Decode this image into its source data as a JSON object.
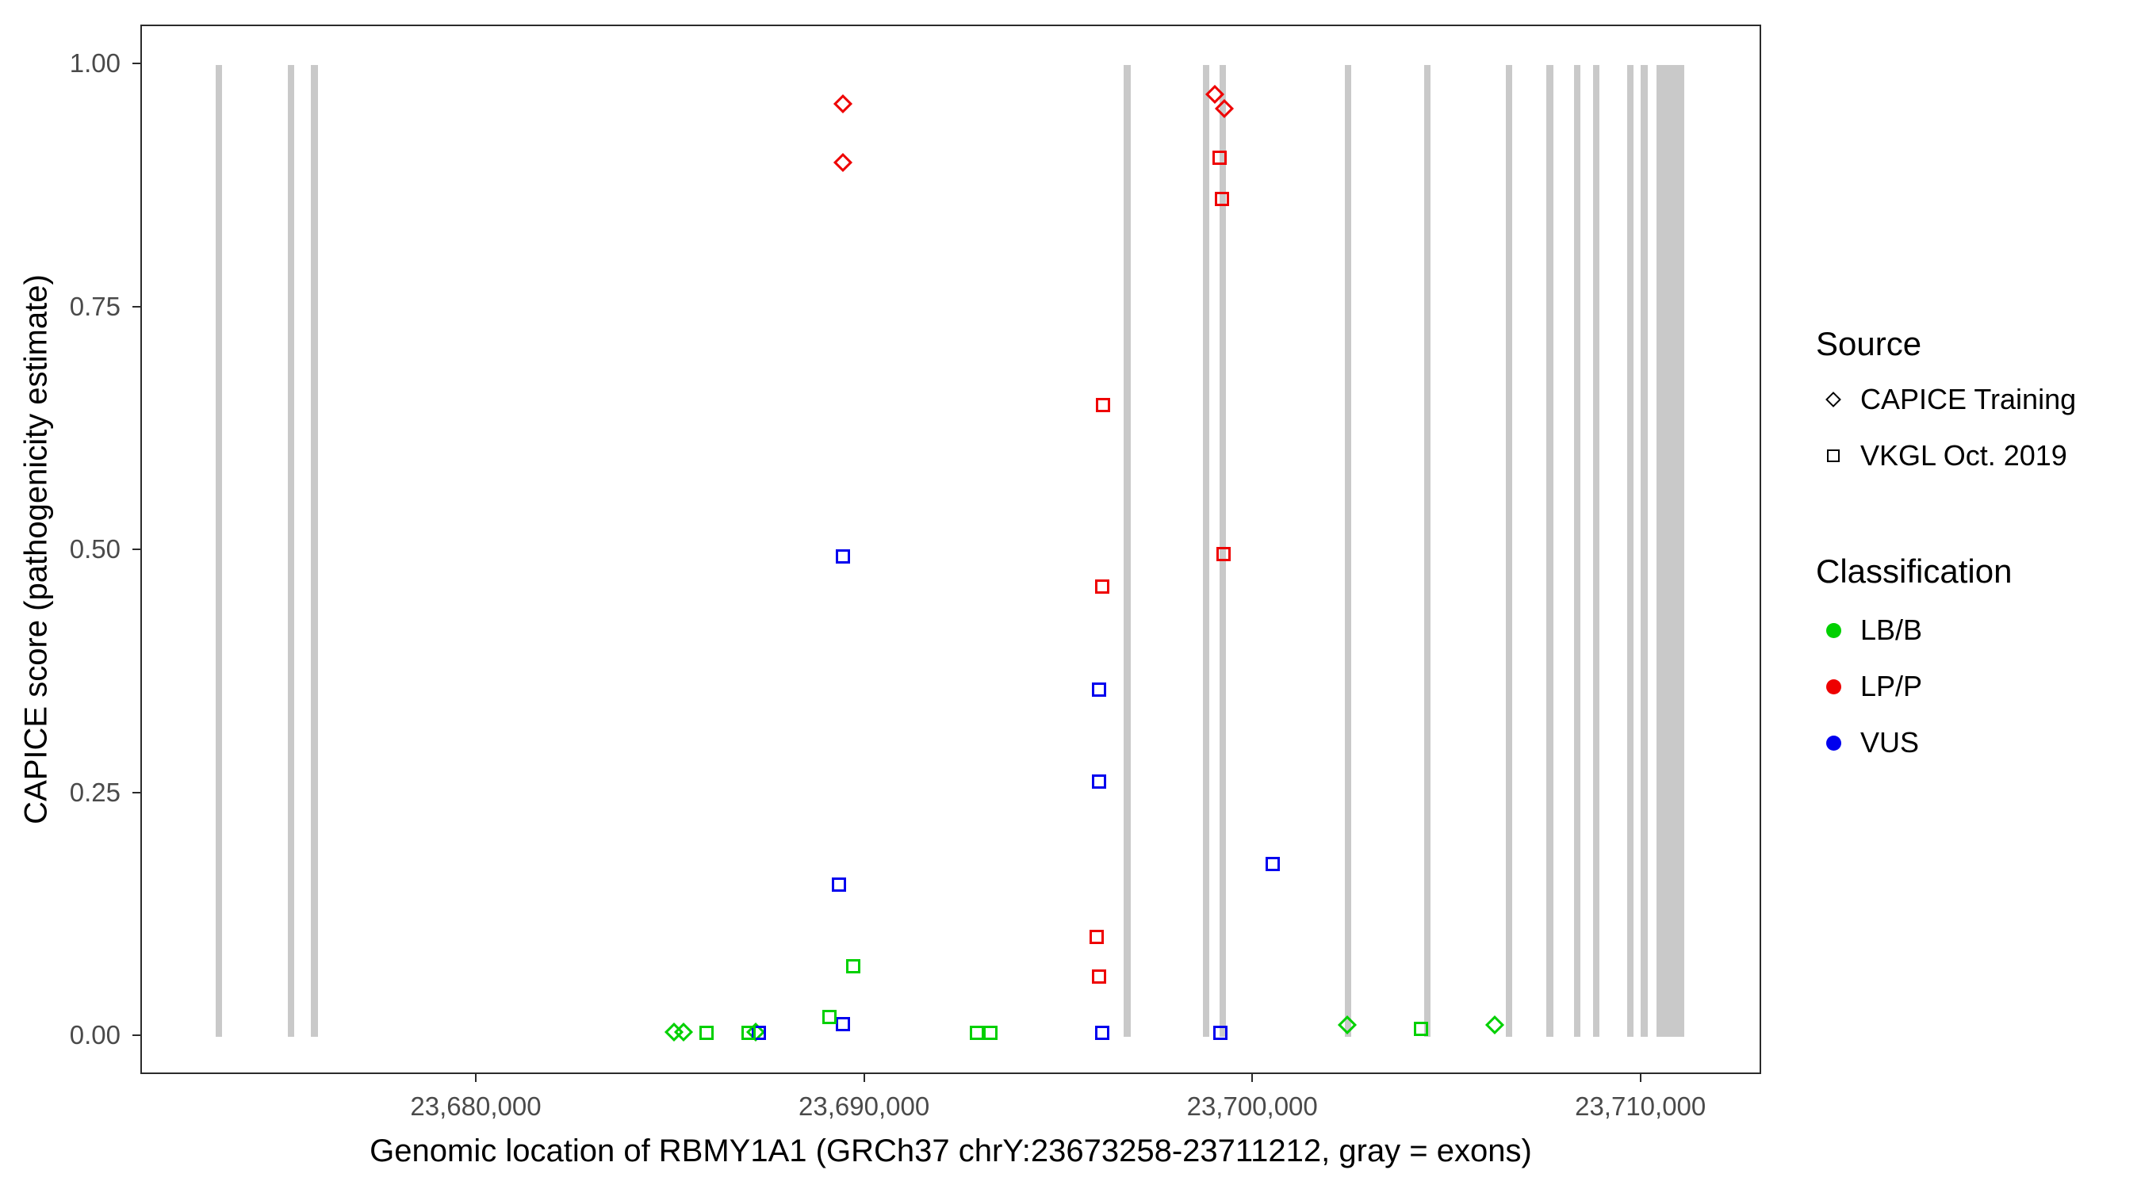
{
  "chart_data": {
    "type": "scatter",
    "title": "",
    "xlabel": "Genomic location of RBMY1A1 (GRCh37 chrY:23673258-23711212, gray = exons)",
    "ylabel": "CAPICE score (pathogenicity estimate)",
    "xlim": [
      23671360,
      23713110
    ],
    "ylim": [
      -0.04,
      1.04
    ],
    "xticks": [
      23680000,
      23690000,
      23700000,
      23710000
    ],
    "xtick_labels": [
      "23,680,000",
      "23,690,000",
      "23,700,000",
      "23,710,000"
    ],
    "yticks": [
      1.0,
      0.75,
      0.5,
      0.25,
      0.0
    ],
    "ytick_labels": [
      "1.00",
      "0.75",
      "0.50",
      "0.25",
      "0.00"
    ],
    "grid": false,
    "legend_position": "right",
    "exon_color": "#C9C9C9",
    "exon_span_scores": [
      0.0,
      1.0
    ],
    "exons": [
      [
        23673258,
        23673430
      ],
      [
        23675120,
        23675290
      ],
      [
        23675715,
        23675890
      ],
      [
        23696650,
        23696825
      ],
      [
        23698690,
        23698860
      ],
      [
        23699110,
        23699285
      ],
      [
        23702340,
        23702515
      ],
      [
        23704380,
        23704550
      ],
      [
        23706485,
        23706660
      ],
      [
        23707540,
        23707715
      ],
      [
        23708240,
        23708415
      ],
      [
        23708730,
        23708910
      ],
      [
        23709610,
        23709785
      ],
      [
        23709960,
        23710140
      ],
      [
        23710380,
        23711090
      ]
    ],
    "points": [
      {
        "x": 23689413,
        "y": 0.96,
        "shape": "diamond",
        "cls": "LP/P"
      },
      {
        "x": 23689413,
        "y": 0.9,
        "shape": "diamond",
        "cls": "LP/P"
      },
      {
        "x": 23699000,
        "y": 0.97,
        "shape": "diamond",
        "cls": "LP/P"
      },
      {
        "x": 23699250,
        "y": 0.955,
        "shape": "diamond",
        "cls": "LP/P"
      },
      {
        "x": 23685060,
        "y": 0.005,
        "shape": "diamond",
        "cls": "LB/B"
      },
      {
        "x": 23685300,
        "y": 0.005,
        "shape": "diamond",
        "cls": "LB/B"
      },
      {
        "x": 23687170,
        "y": 0.005,
        "shape": "diamond",
        "cls": "LB/B"
      },
      {
        "x": 23702410,
        "y": 0.012,
        "shape": "diamond",
        "cls": "LB/B"
      },
      {
        "x": 23706200,
        "y": 0.012,
        "shape": "diamond",
        "cls": "LB/B"
      },
      {
        "x": 23699110,
        "y": 0.905,
        "shape": "square",
        "cls": "LP/P"
      },
      {
        "x": 23699180,
        "y": 0.862,
        "shape": "square",
        "cls": "LP/P"
      },
      {
        "x": 23696120,
        "y": 0.65,
        "shape": "square",
        "cls": "LP/P"
      },
      {
        "x": 23699210,
        "y": 0.497,
        "shape": "square",
        "cls": "LP/P"
      },
      {
        "x": 23696090,
        "y": 0.463,
        "shape": "square",
        "cls": "LP/P"
      },
      {
        "x": 23695950,
        "y": 0.103,
        "shape": "square",
        "cls": "LP/P"
      },
      {
        "x": 23696020,
        "y": 0.062,
        "shape": "square",
        "cls": "LP/P"
      },
      {
        "x": 23689410,
        "y": 0.494,
        "shape": "square",
        "cls": "VUS"
      },
      {
        "x": 23696020,
        "y": 0.357,
        "shape": "square",
        "cls": "VUS"
      },
      {
        "x": 23696020,
        "y": 0.263,
        "shape": "square",
        "cls": "VUS"
      },
      {
        "x": 23700480,
        "y": 0.178,
        "shape": "square",
        "cls": "VUS"
      },
      {
        "x": 23689310,
        "y": 0.157,
        "shape": "square",
        "cls": "VUS"
      },
      {
        "x": 23689410,
        "y": 0.013,
        "shape": "square",
        "cls": "VUS"
      },
      {
        "x": 23687240,
        "y": 0.004,
        "shape": "square",
        "cls": "VUS"
      },
      {
        "x": 23696090,
        "y": 0.004,
        "shape": "square",
        "cls": "VUS"
      },
      {
        "x": 23699140,
        "y": 0.004,
        "shape": "square",
        "cls": "VUS"
      },
      {
        "x": 23689690,
        "y": 0.073,
        "shape": "square",
        "cls": "LB/B"
      },
      {
        "x": 23689060,
        "y": 0.02,
        "shape": "square",
        "cls": "LB/B"
      },
      {
        "x": 23685900,
        "y": 0.004,
        "shape": "square",
        "cls": "LB/B"
      },
      {
        "x": 23686990,
        "y": 0.004,
        "shape": "square",
        "cls": "LB/B"
      },
      {
        "x": 23692860,
        "y": 0.004,
        "shape": "square",
        "cls": "LB/B"
      },
      {
        "x": 23693210,
        "y": 0.004,
        "shape": "square",
        "cls": "LB/B"
      },
      {
        "x": 23704310,
        "y": 0.008,
        "shape": "square",
        "cls": "LB/B"
      }
    ]
  },
  "legend": {
    "source": {
      "title": "Source",
      "items": [
        {
          "label": "CAPICE Training",
          "shape": "diamond"
        },
        {
          "label": "VKGL Oct. 2019",
          "shape": "square"
        }
      ]
    },
    "classification": {
      "title": "Classification",
      "items": [
        {
          "label": "LB/B",
          "color": "#00D000"
        },
        {
          "label": "LP/P",
          "color": "#EE0000"
        },
        {
          "label": "VUS",
          "color": "#0000EE"
        }
      ]
    }
  }
}
